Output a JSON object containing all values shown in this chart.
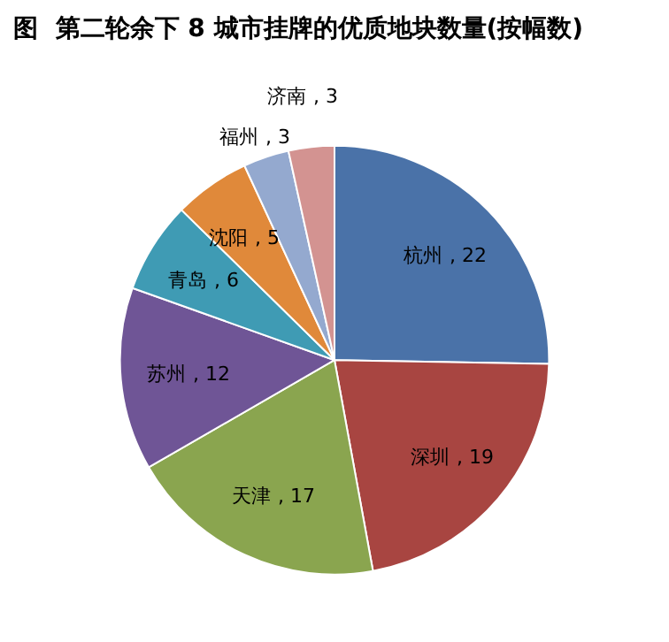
{
  "chart_data": {
    "type": "pie",
    "title": "图  第二轮余下 8 城市挂牌的优质地块数量(按幅数)",
    "categories": [
      "杭州",
      "深圳",
      "天津",
      "苏州",
      "青岛",
      "沈阳",
      "福州",
      "济南"
    ],
    "values": [
      22,
      19,
      17,
      12,
      6,
      5,
      3,
      3
    ],
    "colors": [
      "#4a72a8",
      "#a84541",
      "#8aa54f",
      "#6f5596",
      "#3f9bb4",
      "#e0893a",
      "#94a9cf",
      "#d39391"
    ],
    "value_labels": [
      ", 22",
      ", 19",
      ", 17",
      ", 12",
      ", 6",
      ", 5",
      ", 3",
      ", 3"
    ],
    "legend": false
  }
}
